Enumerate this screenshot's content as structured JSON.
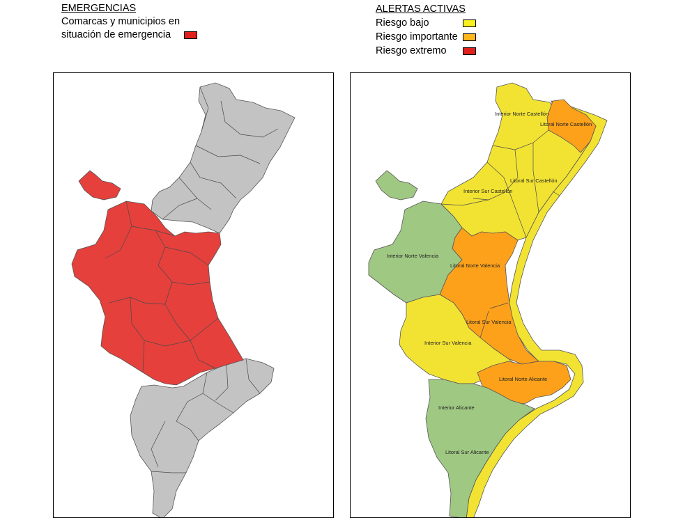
{
  "emergencias": {
    "title": "EMERGENCIAS",
    "line1": "Comarcas y municipios en",
    "line2": "situación de emergencia",
    "swatch_color": "#e0201c"
  },
  "alertas": {
    "title": "ALERTAS ACTIVAS",
    "levels": [
      {
        "label": "Riesgo bajo",
        "color": "#f7f01e"
      },
      {
        "label": "Riesgo importante",
        "color": "#fdb71a"
      },
      {
        "label": "Riesgo extremo",
        "color": "#e0201c"
      }
    ]
  },
  "map_colors": {
    "gray": "#c3c3c3",
    "emergency_red": "#e5403c",
    "low_yellow": "#f2e333",
    "important_orange": "#fda11b",
    "none_green": "#9fc883"
  },
  "zones": {
    "interior_norte_castellon": "Interior Norte Castellón",
    "litoral_norte_castellon": "Litoral Norte Castellón",
    "litoral_sur_castellon": "Litoral Sur Castellón",
    "interior_sur_castellon": "Interior Sur Castellón",
    "interior_norte_valencia": "Interior Norte Valencia",
    "litoral_norte_valencia": "Litoral Norte Valencia",
    "litoral_sur_valencia": "Litoral Sur Valencia",
    "interior_sur_valencia": "Interior Sur Valencia",
    "litoral_norte_alicante": "Litoral Norte Alicante",
    "interior_alicante": "Interior Alicante",
    "litoral_sur_alicante": "Litoral Sur Alicante"
  }
}
